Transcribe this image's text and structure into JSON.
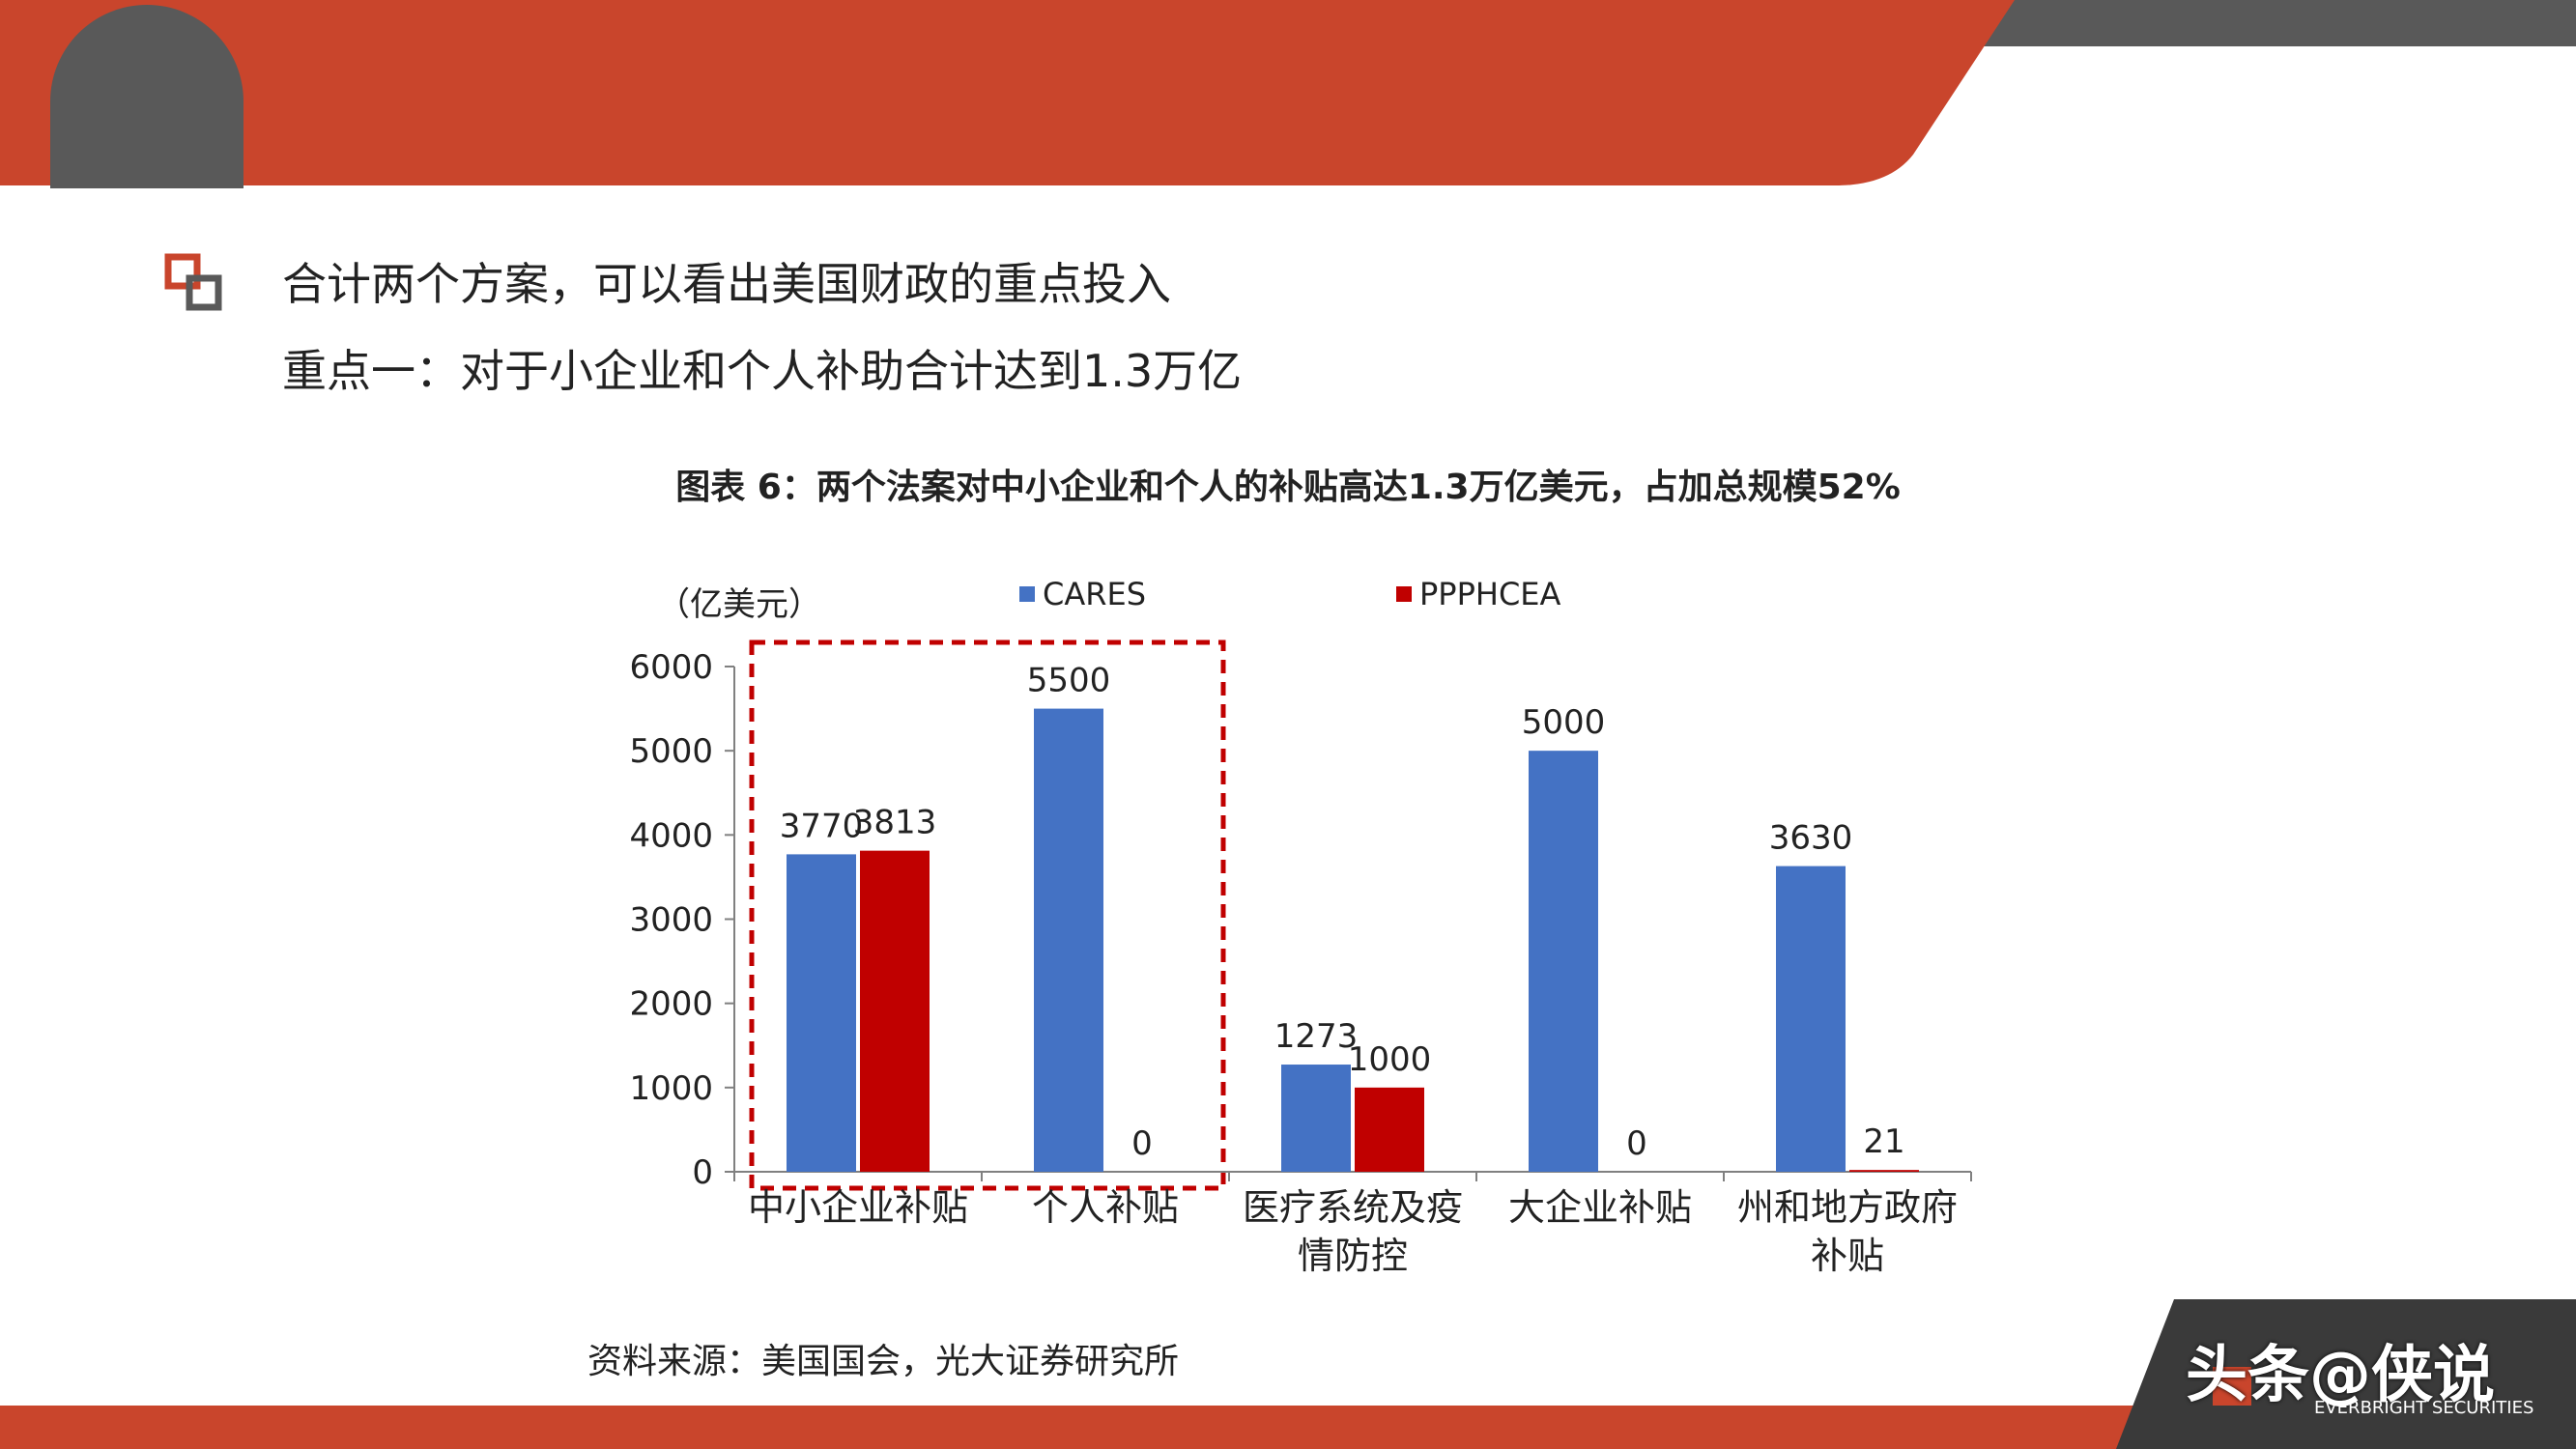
{
  "headline": {
    "line1": "合计两个方案，可以看出美国财政的重点投入",
    "line2": "重点一：对于小企业和个人补助合计达到1.3万亿"
  },
  "figure": {
    "title": "图表 6：两个法案对中小企业和个人的补贴高达1.3万亿美元，占加总规模52%",
    "source": "资料来源：美国国会，光大证券研究所"
  },
  "watermark": {
    "text": "头条@侠说",
    "brand": "EVERBRIGHT SECURITIES"
  },
  "colors": {
    "accent": "#c9452c",
    "cares": "#4472c4",
    "ppphcea": "#c00000",
    "highlight_box": "#c00000"
  },
  "chart_data": {
    "type": "bar",
    "ylabel": "（亿美元）",
    "ylim": [
      0,
      6000
    ],
    "yticks": [
      0,
      1000,
      2000,
      3000,
      4000,
      5000,
      6000
    ],
    "categories": [
      [
        "中小企业补贴"
      ],
      [
        "个人补贴"
      ],
      [
        "医疗系统及疫",
        "情防控"
      ],
      [
        "大企业补贴"
      ],
      [
        "州和地方政府",
        "补贴"
      ]
    ],
    "series": [
      {
        "name": "CARES",
        "color": "#4472c4",
        "values": [
          3770,
          5500,
          1273,
          5000,
          3630
        ]
      },
      {
        "name": "PPPHCEA",
        "color": "#c00000",
        "values": [
          3813,
          0,
          1000,
          0,
          21
        ]
      }
    ],
    "highlight": {
      "categories": [
        0,
        1
      ],
      "style": "dashed-box"
    },
    "legend": "top",
    "grid": false
  }
}
